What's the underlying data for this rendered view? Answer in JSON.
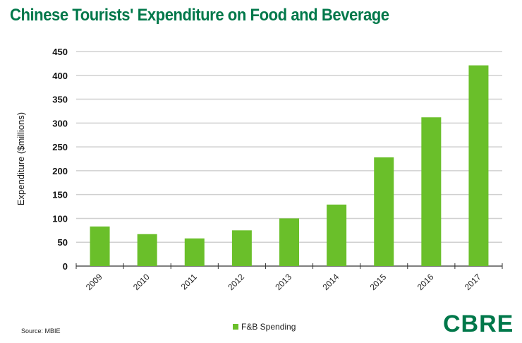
{
  "chart_data": {
    "type": "bar",
    "title": "Chinese Tourists' Expenditure on Food and Beverage",
    "categories": [
      "2009",
      "2010",
      "2011",
      "2012",
      "2013",
      "2014",
      "2015",
      "2016",
      "2017"
    ],
    "series": [
      {
        "name": "F&B Spending",
        "values": [
          83,
          67,
          58,
          75,
          100,
          129,
          228,
          312,
          421
        ],
        "color": "#6abf2a"
      }
    ],
    "xlabel": "",
    "ylabel": "Expenditure ($millions)",
    "ylim": [
      0,
      450
    ],
    "yticks": [
      0,
      50,
      100,
      150,
      200,
      250,
      300,
      350,
      400,
      450
    ],
    "grid": true,
    "legend": "bottom-center"
  },
  "source": "Source: MBIE",
  "logo": "CBRE",
  "colors": {
    "title": "#00784a",
    "bar": "#6abf2a"
  }
}
